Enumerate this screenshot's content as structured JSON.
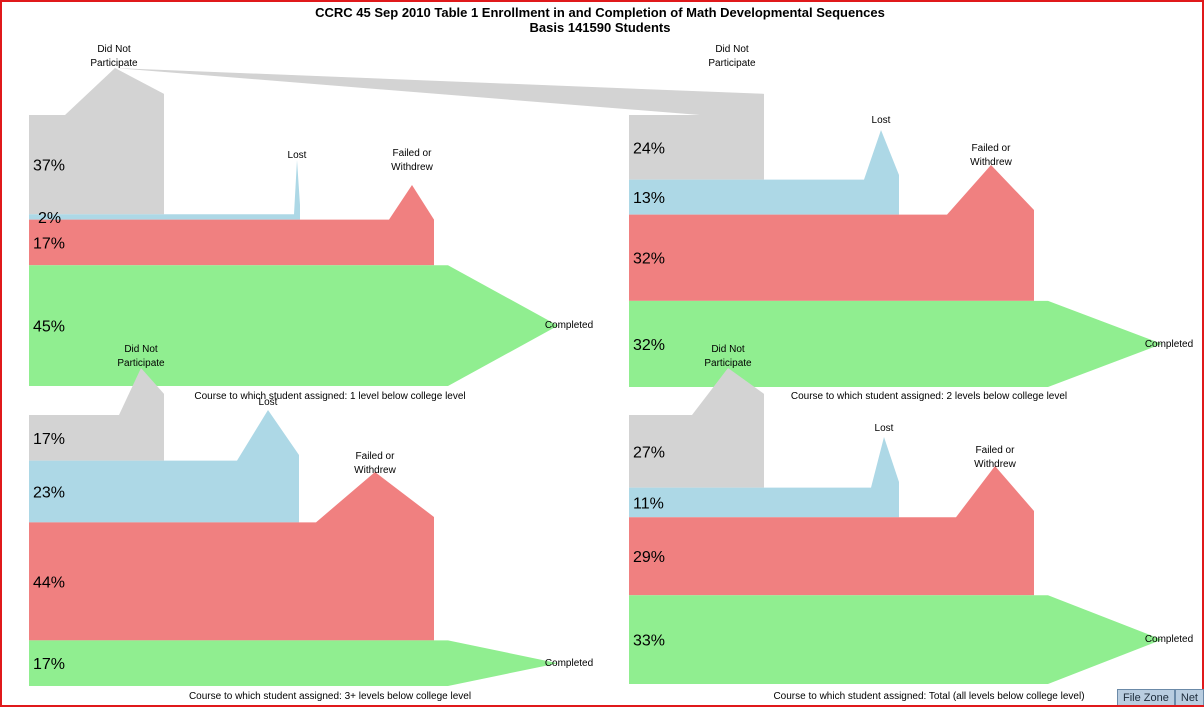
{
  "title": {
    "line1": "CCRC 45 Sep 2010 Table 1 Enrollment in and Completion of Math Developmental Sequences",
    "line2": "Basis 141590 Students"
  },
  "status_bar": [
    "File Zone",
    "Net"
  ],
  "colors": {
    "did_not_participate": "#d3d3d3",
    "lost": "#add8e6",
    "failed_or_withdrew": "#f08080",
    "completed": "#90ee90"
  },
  "labels": {
    "did_not_participate": [
      "Did Not",
      "Participate"
    ],
    "lost": "Lost",
    "failed_or_withdrew": [
      "Failed or",
      "Withdrew"
    ],
    "completed": "Completed"
  },
  "chart_data": [
    {
      "type": "area",
      "caption": "Course to which student assigned: 1 level below college level",
      "categories": [
        "Did Not Participate",
        "Lost",
        "Failed or Withdrew",
        "Completed"
      ],
      "values": [
        37,
        2,
        17,
        45
      ],
      "value_labels": [
        "37%",
        "2%",
        "17%",
        "45%"
      ]
    },
    {
      "type": "area",
      "caption": "Course to which student assigned: 2 levels below college level",
      "categories": [
        "Did Not Participate",
        "Lost",
        "Failed or Withdrew",
        "Completed"
      ],
      "values": [
        24,
        13,
        32,
        32
      ],
      "value_labels": [
        "24%",
        "13%",
        "32%",
        "32%"
      ]
    },
    {
      "type": "area",
      "caption": "Course to which student assigned: 3+ levels below college level",
      "categories": [
        "Did Not Participate",
        "Lost",
        "Failed or Withdrew",
        "Completed"
      ],
      "values": [
        17,
        23,
        44,
        17
      ],
      "value_labels": [
        "17%",
        "23%",
        "44%",
        "17%"
      ]
    },
    {
      "type": "area",
      "caption": "Course to which student assigned: Total (all levels below college level)",
      "categories": [
        "Did Not Participate",
        "Lost",
        "Failed or Withdrew",
        "Completed"
      ],
      "values": [
        27,
        11,
        29,
        33
      ],
      "value_labels": [
        "27%",
        "11%",
        "29%",
        "33%"
      ]
    }
  ]
}
